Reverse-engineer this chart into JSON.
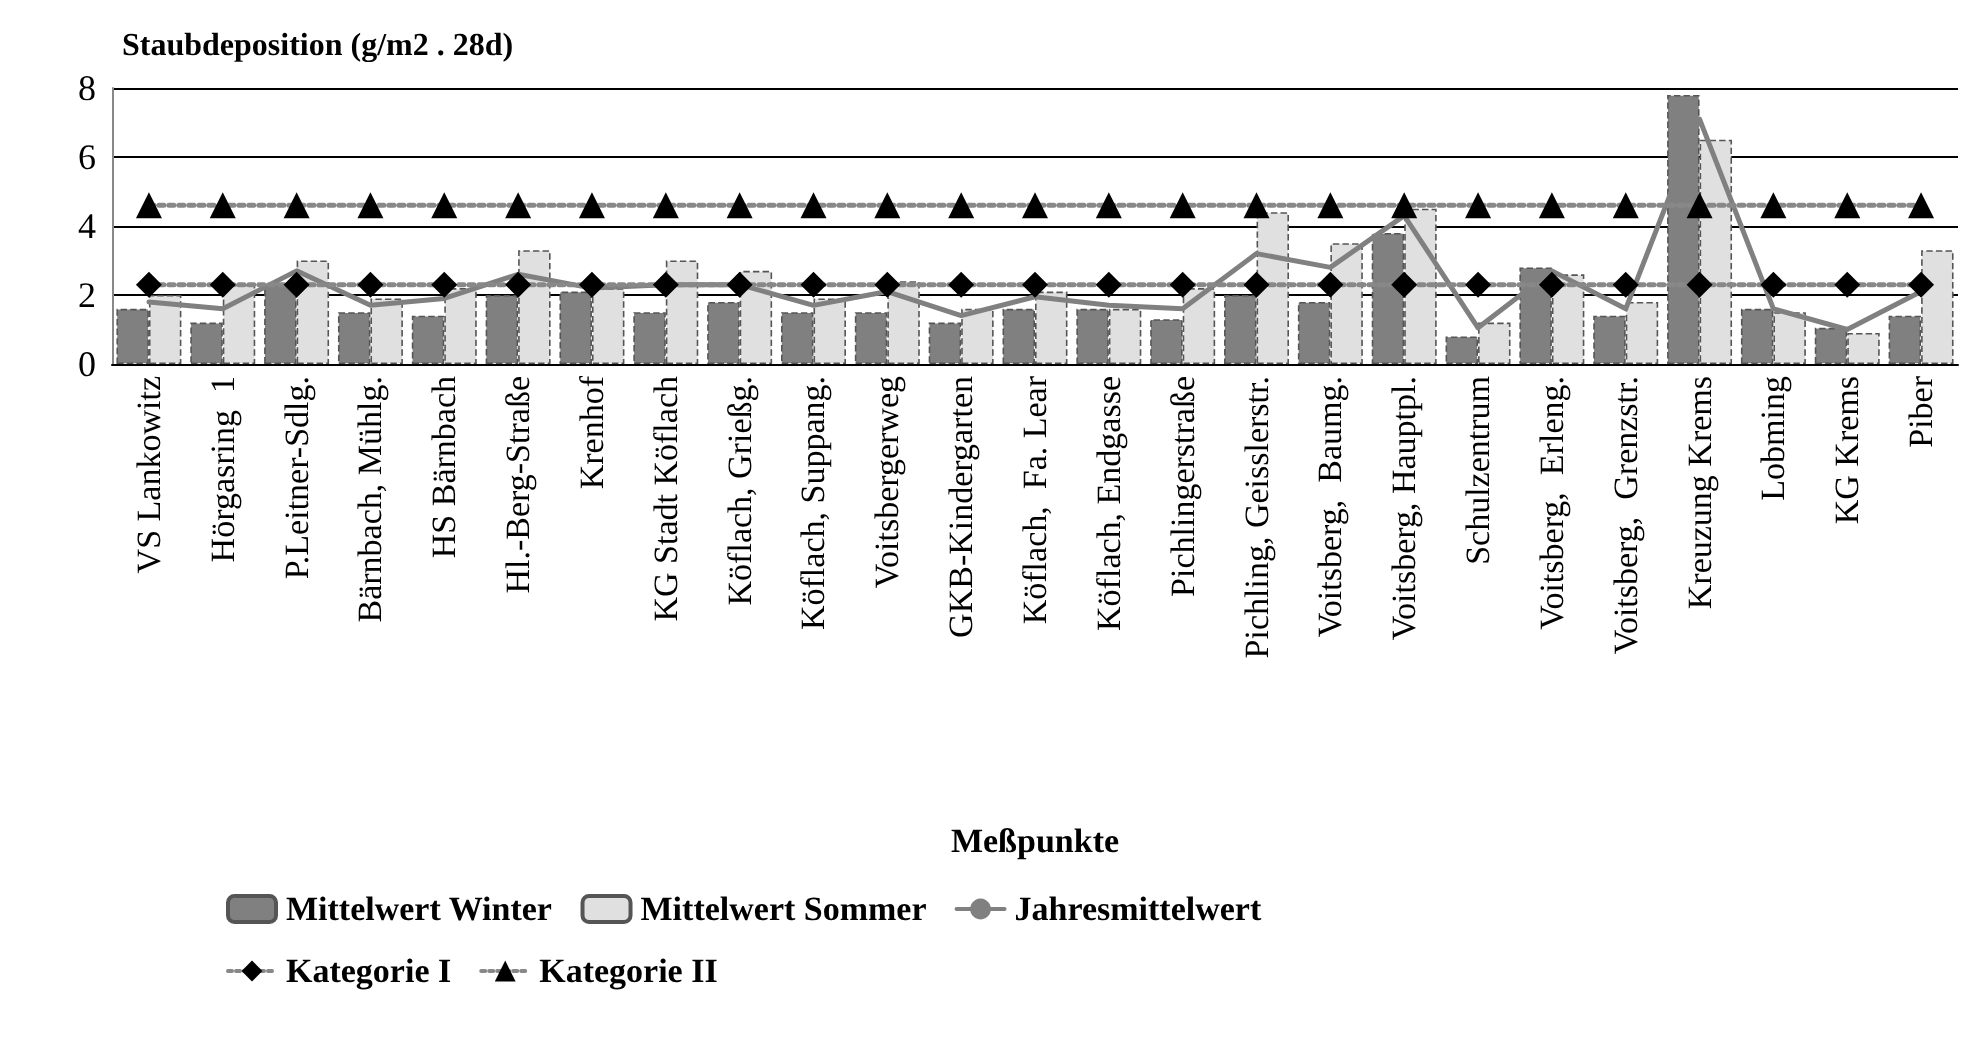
{
  "chart_data": {
    "type": "bar",
    "title": "Staubdeposition (g/m2 . 28d)",
    "xlabel": "Meßpunkte",
    "categories": [
      "VS Lankowitz",
      "Hörgasring  1",
      "P.Leitner-Sdlg.",
      "Bärnbach, Mühlg.",
      "HS Bärnbach",
      "Hl.-Berg-Straße",
      "Krenhof",
      "KG Stadt Köflach",
      "Köflach, Grießg.",
      "Köflach, Suppang.",
      "Voitsbergerweg",
      "GKB-Kindergarten",
      "Köflach,  Fa. Lear",
      "Köflach, Endgasse",
      "Pichlingerstraße",
      "Pichling, Geisslerstr.",
      "Voitsberg,  Baumg.",
      "Voitsberg, Hauptpl.",
      "Schulzentrum",
      "Voitsberg,  Erleng.",
      "Voitsberg,  Grenzstr.",
      "Kreuzung Krems",
      "Lobming",
      "KG Krems",
      "Piber"
    ],
    "series": [
      {
        "name": "Mittelwert Winter",
        "color": "#808080",
        "values": [
          1.6,
          1.2,
          2.3,
          1.5,
          1.4,
          2.0,
          2.1,
          1.5,
          1.8,
          1.5,
          1.5,
          1.2,
          1.6,
          1.6,
          1.3,
          2.0,
          1.8,
          3.8,
          0.8,
          2.8,
          1.4,
          7.8,
          1.6,
          1.05,
          1.4
        ]
      },
      {
        "name": "Mittelwert Sommer",
        "color": "#e0e0e0",
        "values": [
          2.0,
          2.3,
          3.0,
          1.9,
          2.2,
          3.3,
          2.2,
          3.0,
          2.7,
          1.9,
          2.4,
          1.6,
          2.1,
          1.6,
          2.2,
          4.4,
          3.5,
          4.5,
          1.2,
          2.6,
          1.8,
          6.5,
          1.5,
          0.9,
          3.3
        ]
      },
      {
        "name": "Jahresmittelwert",
        "type": "line",
        "color": "#808080",
        "marker": "none",
        "line_style": "solid",
        "values": [
          1.8,
          1.6,
          2.7,
          1.7,
          1.9,
          2.6,
          2.2,
          2.3,
          2.3,
          1.7,
          2.1,
          1.4,
          1.95,
          1.7,
          1.6,
          3.2,
          2.8,
          4.3,
          1.05,
          2.7,
          1.6,
          7.1,
          1.6,
          1.0,
          2.1
        ]
      },
      {
        "name": "Kategorie I",
        "type": "line",
        "color": "#000000",
        "marker": "diamond",
        "line_style": "dotted",
        "values": [
          2.3,
          2.3,
          2.3,
          2.3,
          2.3,
          2.3,
          2.3,
          2.3,
          2.3,
          2.3,
          2.3,
          2.3,
          2.3,
          2.3,
          2.3,
          2.3,
          2.3,
          2.3,
          2.3,
          2.3,
          2.3,
          2.3,
          2.3,
          2.3,
          2.3
        ]
      },
      {
        "name": "Kategorie II",
        "type": "line",
        "color": "#000000",
        "marker": "triangle",
        "line_style": "dotted",
        "values": [
          4.6,
          4.6,
          4.6,
          4.6,
          4.6,
          4.6,
          4.6,
          4.6,
          4.6,
          4.6,
          4.6,
          4.6,
          4.6,
          4.6,
          4.6,
          4.6,
          4.6,
          4.6,
          4.6,
          4.6,
          4.6,
          4.6,
          4.6,
          4.6,
          4.6
        ]
      }
    ],
    "ylim": [
      0,
      8
    ],
    "yticks": [
      0,
      2,
      4,
      6,
      8
    ],
    "grid": "y",
    "legend": "bottom"
  }
}
